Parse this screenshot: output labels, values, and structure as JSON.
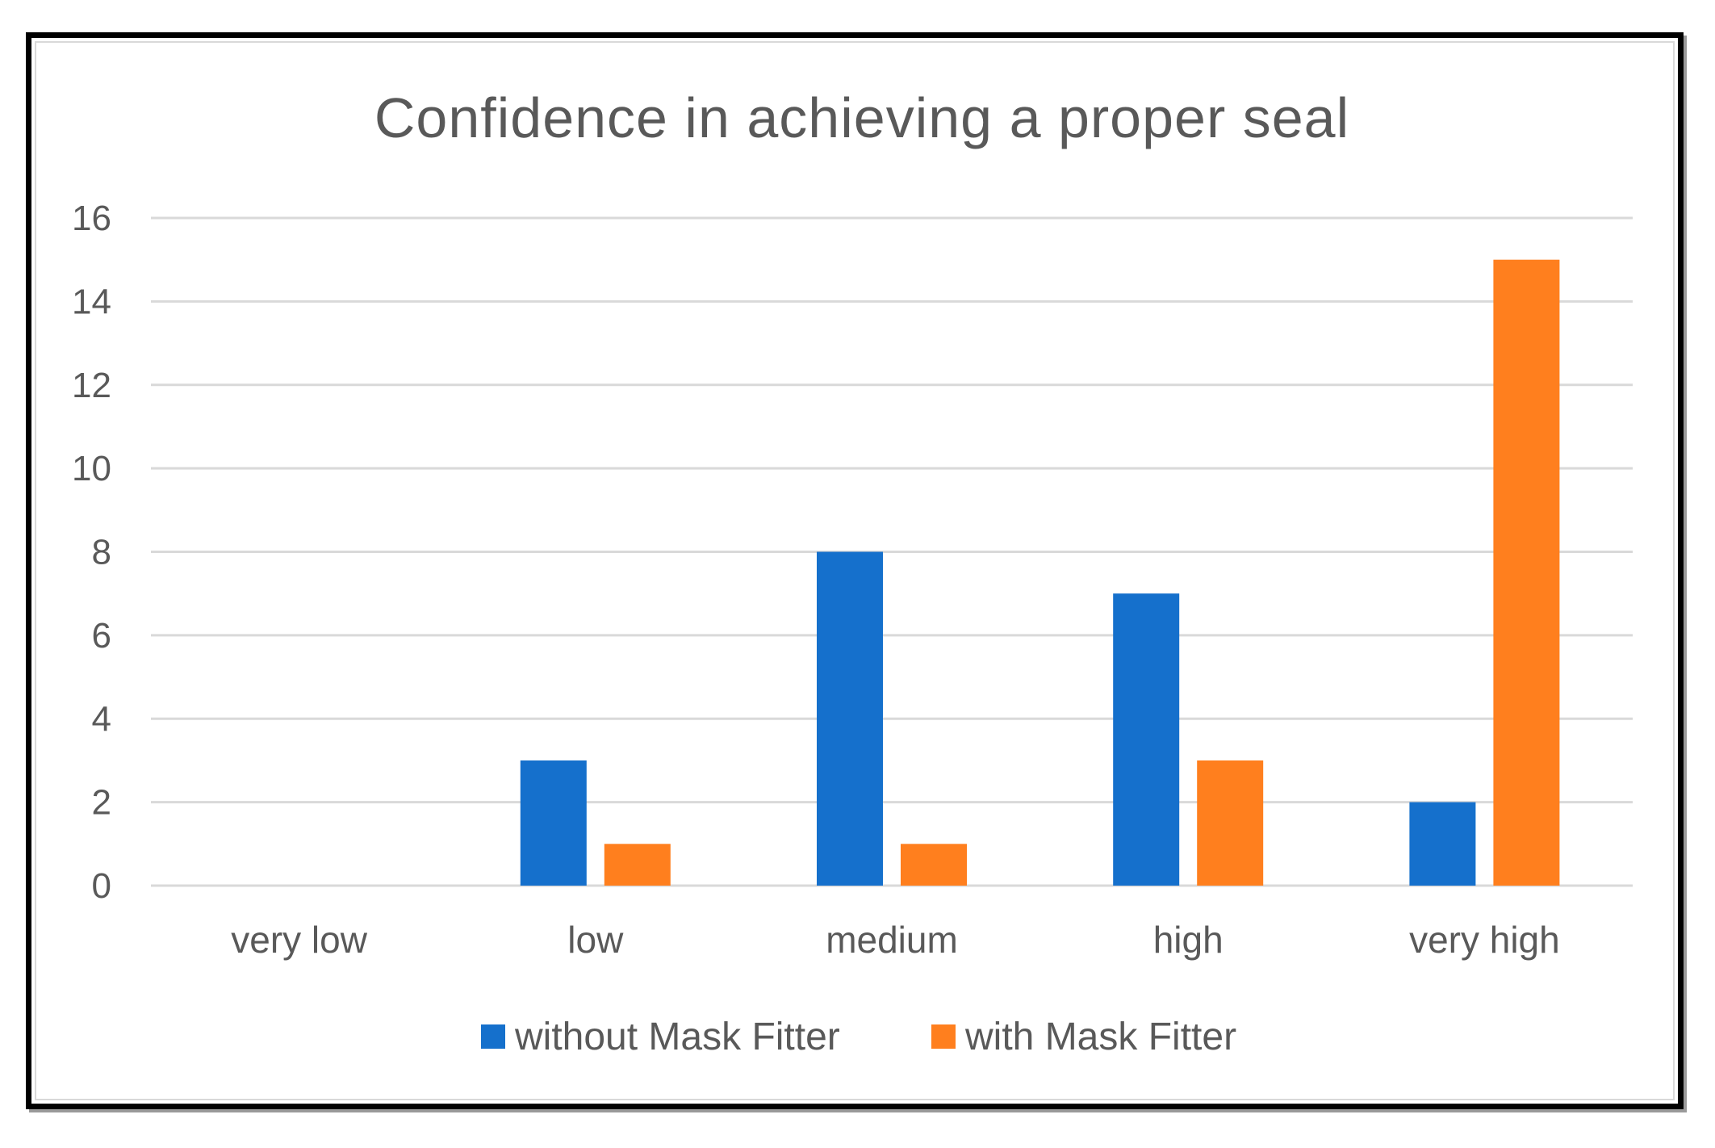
{
  "chart_data": {
    "type": "bar",
    "title": "Confidence in achieving a proper seal",
    "xlabel": "",
    "ylabel": "",
    "categories": [
      "very low",
      "low",
      "medium",
      "high",
      "very high"
    ],
    "series": [
      {
        "name": "without Mask Fitter",
        "color": "#1570CC",
        "values": [
          0,
          3,
          8,
          7,
          2
        ]
      },
      {
        "name": "with Mask Fitter",
        "color": "#FF7F1E",
        "values": [
          0,
          1,
          1,
          3,
          15
        ]
      }
    ],
    "ylim": [
      0,
      16
    ],
    "yticks": [
      0,
      2,
      4,
      6,
      8,
      10,
      12,
      14,
      16
    ],
    "grid": true,
    "legend_position": "bottom"
  }
}
